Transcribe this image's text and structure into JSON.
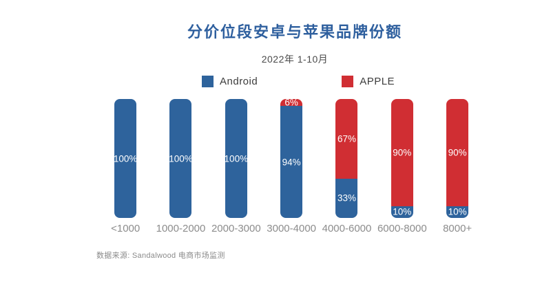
{
  "header": {
    "title": "分价位段安卓与苹果品牌份额",
    "subtitle": "2022年 1-10月"
  },
  "legend": {
    "items": [
      {
        "label": "Android",
        "color": "#2e639c"
      },
      {
        "label": "APPLE",
        "color": "#d02e33"
      }
    ]
  },
  "chart_data": {
    "type": "bar",
    "stacked": true,
    "orientation": "vertical",
    "title": "分价位段安卓与苹果品牌份额",
    "subtitle": "2022年 1-10月",
    "categories": [
      "<1000",
      "1000-2000",
      "2000-3000",
      "3000-4000",
      "4000-6000",
      "6000-8000",
      "8000+"
    ],
    "series": [
      {
        "name": "Android",
        "color": "#2e639c",
        "values": [
          100,
          100,
          100,
          94,
          33,
          10,
          10
        ]
      },
      {
        "name": "APPLE",
        "color": "#d02e33",
        "values": [
          0,
          0,
          0,
          6,
          67,
          90,
          90
        ]
      }
    ],
    "value_suffix": "%",
    "ylim": [
      0,
      100
    ],
    "grid": false,
    "legend_position": "top",
    "data_labels": "inside-white"
  },
  "source": "数据来源: Sandalwood 电商市场监测",
  "colors": {
    "android_blue": "#2e639c",
    "apple_red": "#d02e33",
    "title_blue": "#2e5f9e",
    "axis_label_gray": "#8c8c8c",
    "background": "#ffffff"
  }
}
